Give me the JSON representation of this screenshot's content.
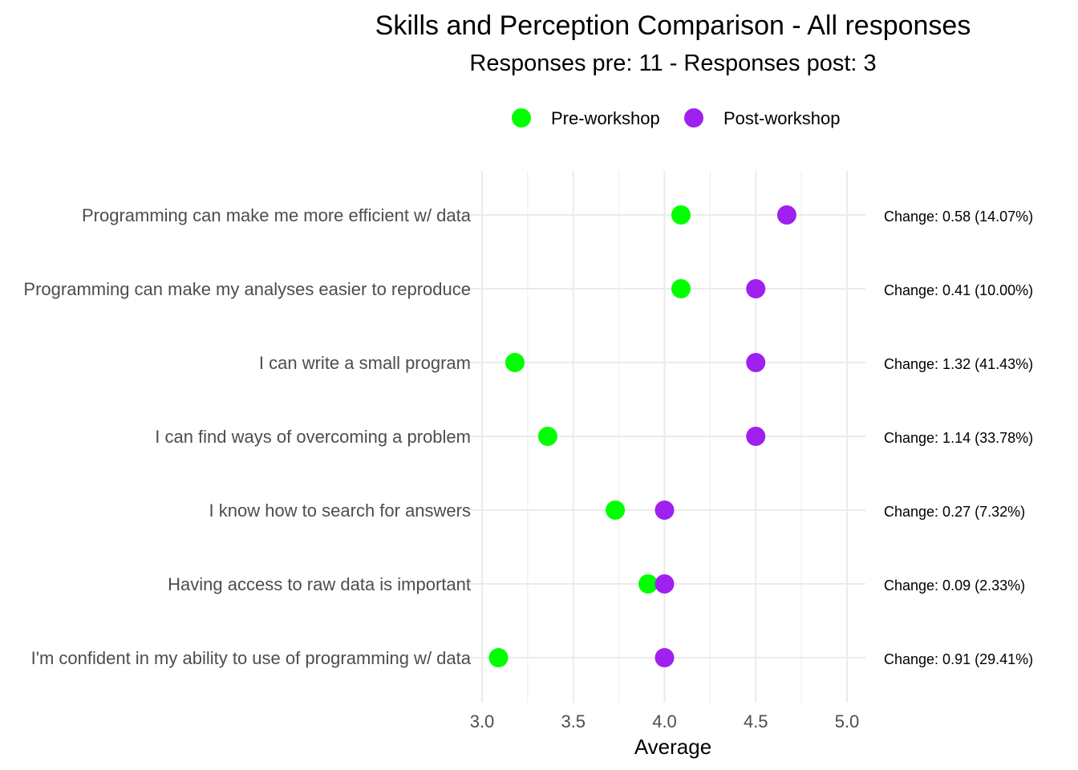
{
  "chart_data": {
    "type": "scatter",
    "title": "Skills and Perception Comparison - All responses",
    "subtitle": "Responses pre: 11 - Responses post: 3",
    "xlabel": "Average",
    "ylabel": "",
    "xlim": [
      3.0,
      5.0
    ],
    "x_ticks": [
      "3.0",
      "3.5",
      "4.0",
      "4.5",
      "5.0"
    ],
    "x_tick_values": [
      3.0,
      3.5,
      4.0,
      4.5,
      5.0
    ],
    "grid": true,
    "legend": {
      "position": "top",
      "entries": [
        {
          "name": "Pre-workshop",
          "color": "#00ff00"
        },
        {
          "name": "Post-workshop",
          "color": "#a020f0"
        }
      ]
    },
    "categories": [
      "Programming can make me more efficient w/ data",
      "Programming can make my analyses easier to reproduce",
      "I can write a small program",
      "I can find ways of overcoming a problem",
      "I know how to search for answers",
      "Having access to raw data is important",
      "I'm confident in my ability to use of programming w/ data"
    ],
    "series": [
      {
        "name": "Pre-workshop",
        "color": "#00ff00",
        "values": [
          4.09,
          4.09,
          3.18,
          3.36,
          3.73,
          3.91,
          3.09
        ]
      },
      {
        "name": "Post-workshop",
        "color": "#a020f0",
        "values": [
          4.67,
          4.5,
          4.5,
          4.5,
          4.0,
          4.0,
          4.0
        ]
      }
    ],
    "annotations": [
      "Change: 0.58 (14.07%)",
      "Change: 0.41 (10.00%)",
      "Change: 1.32 (41.43%)",
      "Change: 1.14 (33.78%)",
      "Change: 0.27 (7.32%)",
      "Change: 0.09 (2.33%)",
      "Change: 0.91 (29.41%)"
    ]
  }
}
